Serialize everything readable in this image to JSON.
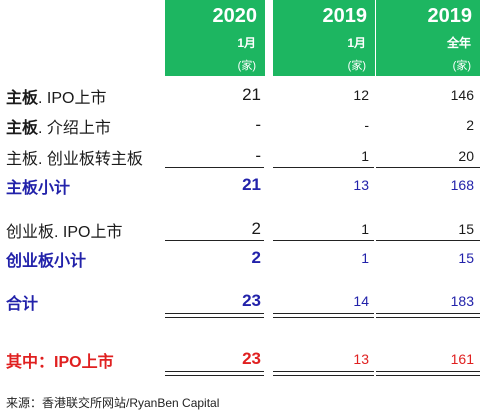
{
  "header": {
    "col1": {
      "year": "2020",
      "period": "1月",
      "unit": "(家)"
    },
    "col2": {
      "year": "2019",
      "period": "1月",
      "unit": "(家)"
    },
    "col3": {
      "year": "2019",
      "period": "全年",
      "unit": "(家)"
    }
  },
  "rows": [
    {
      "label_bold": "主板",
      "label_rest": ". IPO上市",
      "v2020": "21",
      "v2019jan": "12",
      "v2019": "146"
    },
    {
      "label_bold": "主板",
      "label_rest": ". 介绍上市",
      "v2020": "-",
      "v2019jan": "-",
      "v2019": "2"
    },
    {
      "label_bold": "",
      "label_rest": "主板. 创业板转主板",
      "v2020": "-",
      "v2019jan": "1",
      "v2019": "20"
    },
    {
      "label": "主板小计",
      "v2020": "21",
      "v2019jan": "13",
      "v2019": "168"
    },
    {
      "label": "创业板. IPO上市",
      "v2020": "2",
      "v2019jan": "1",
      "v2019": "15"
    },
    {
      "label": "创业板小计",
      "v2020": "2",
      "v2019jan": "1",
      "v2019": "15"
    },
    {
      "label": "合计",
      "v2020": "23",
      "v2019jan": "14",
      "v2019": "183"
    },
    {
      "label": "其中：IPO上市",
      "v2020": "23",
      "v2019jan": "13",
      "v2019": "161"
    }
  ],
  "source": "来源：香港联交所网站/RyanBen Capital",
  "colors": {
    "header_bg": "#1db661",
    "subtotal_blue": "#2222aa",
    "highlight_red": "#e02020"
  }
}
